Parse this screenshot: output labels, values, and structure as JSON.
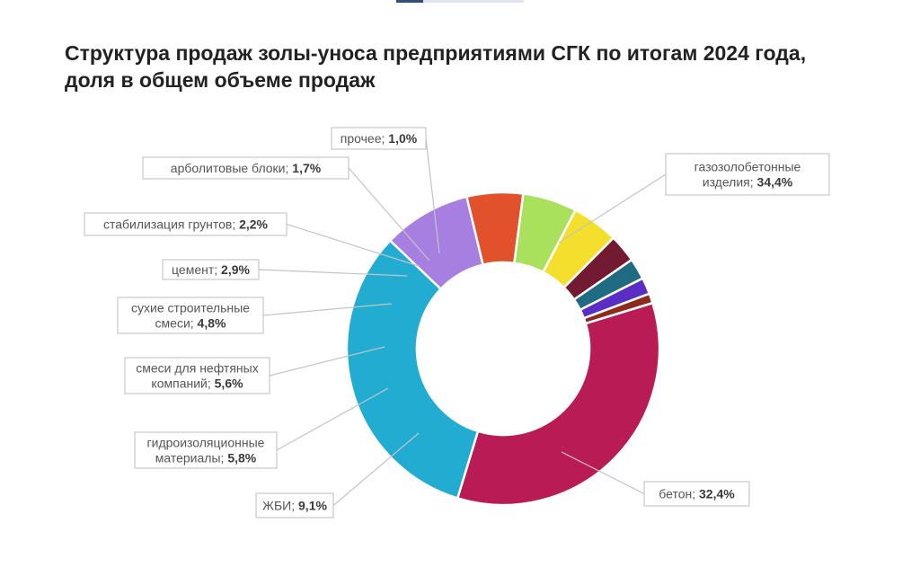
{
  "title": "Структура продаж золы-уноса предприятиями СГК по итогам 2024 года, доля в общем объеме продаж",
  "chart_data": {
    "type": "pie",
    "donut": true,
    "title": "Структура продаж золы-уноса предприятиями СГК по итогам 2024 года, доля в общем объеме продаж",
    "unit": "%",
    "legend": "callout labels",
    "slices": [
      {
        "label": "газозолобетонные изделия",
        "lines": [
          "газозолобетонные",
          "изделия"
        ],
        "value": 34.4,
        "display": "34,4%",
        "color": "#b91c55"
      },
      {
        "label": "бетон",
        "lines": [
          "бетон"
        ],
        "value": 32.4,
        "display": "32,4%",
        "color": "#22acd1"
      },
      {
        "label": "ЖБИ",
        "lines": [
          "ЖБИ"
        ],
        "value": 9.1,
        "display": "9,1%",
        "color": "#a67fe0"
      },
      {
        "label": "гидроизоляционные материалы",
        "lines": [
          "гидроизоляционные",
          "материалы"
        ],
        "value": 5.8,
        "display": "5,8%",
        "color": "#e0512c"
      },
      {
        "label": "смеси для нефтяных компаний",
        "lines": [
          "смеси для нефтяных",
          "компаний"
        ],
        "value": 5.6,
        "display": "5,6%",
        "color": "#a9e05c"
      },
      {
        "label": "сухие строительные смеси",
        "lines": [
          "сухие строительные",
          "смеси"
        ],
        "value": 4.8,
        "display": "4,8%",
        "color": "#f4e02c"
      },
      {
        "label": "цемент",
        "lines": [
          "цемент"
        ],
        "value": 2.9,
        "display": "2,9%",
        "color": "#731a33"
      },
      {
        "label": "стабилизация грунтов",
        "lines": [
          "стабилизация грунтов"
        ],
        "value": 2.2,
        "display": "2,2%",
        "color": "#1e6b82"
      },
      {
        "label": "арболитовые блоки",
        "lines": [
          "арболитовые блоки"
        ],
        "value": 1.7,
        "display": "1,7%",
        "color": "#5a2ec4"
      },
      {
        "label": "прочее",
        "lines": [
          "прочее"
        ],
        "value": 1.0,
        "display": "1,0%",
        "color": "#8c2a1c"
      }
    ]
  }
}
